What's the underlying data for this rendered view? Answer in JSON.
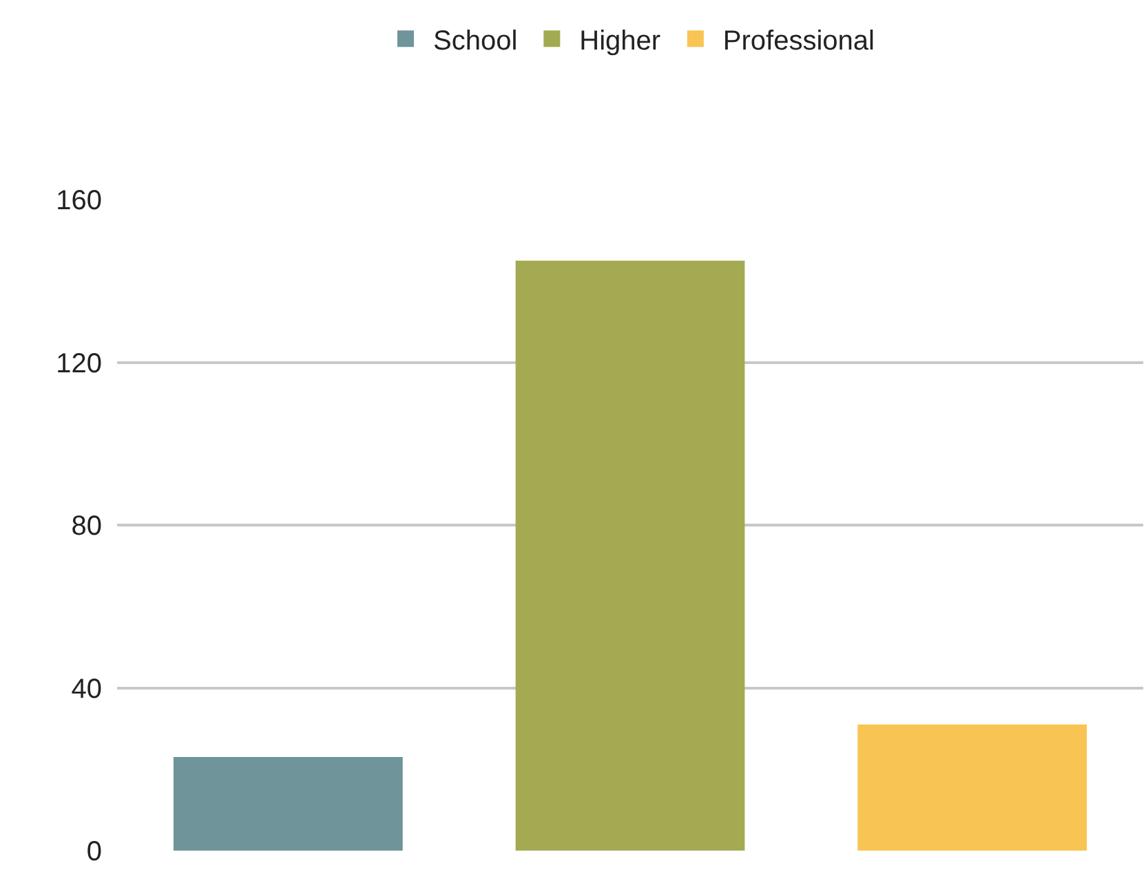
{
  "chart_data": {
    "type": "bar",
    "categories": [
      null
    ],
    "series": [
      {
        "name": "School",
        "color": "#6f949a",
        "values": [
          23
        ]
      },
      {
        "name": "Higher",
        "color": "#a4aa52",
        "values": [
          145
        ]
      },
      {
        "name": "Professional",
        "color": "#f8c453",
        "values": [
          31
        ]
      }
    ],
    "ylim": [
      0,
      160
    ],
    "yticks": [
      0,
      40,
      80,
      120,
      160
    ],
    "grid": "y",
    "legend": "top"
  }
}
